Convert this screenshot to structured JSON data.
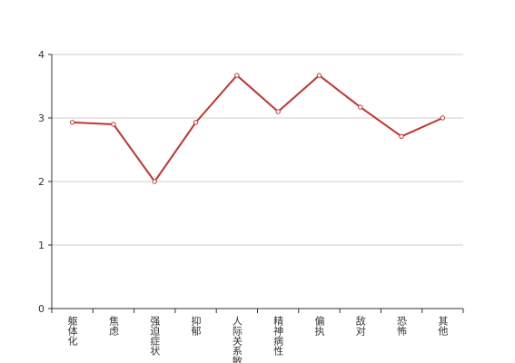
{
  "chart_data": {
    "type": "line",
    "categories": [
      "躯体化",
      "焦虑",
      "强迫症状",
      "抑郁",
      "人际关系敏感",
      "精神病性",
      "偏执",
      "敌对",
      "恐怖",
      "其他"
    ],
    "series": [
      {
        "color": "#c23531",
        "values": [
          2.93,
          2.9,
          2.0,
          2.93,
          3.67,
          3.1,
          3.67,
          3.17,
          2.71,
          3.0
        ]
      }
    ],
    "ylim": [
      0,
      4
    ],
    "yticks": [
      0,
      1,
      2,
      3,
      4
    ],
    "grid": true
  }
}
